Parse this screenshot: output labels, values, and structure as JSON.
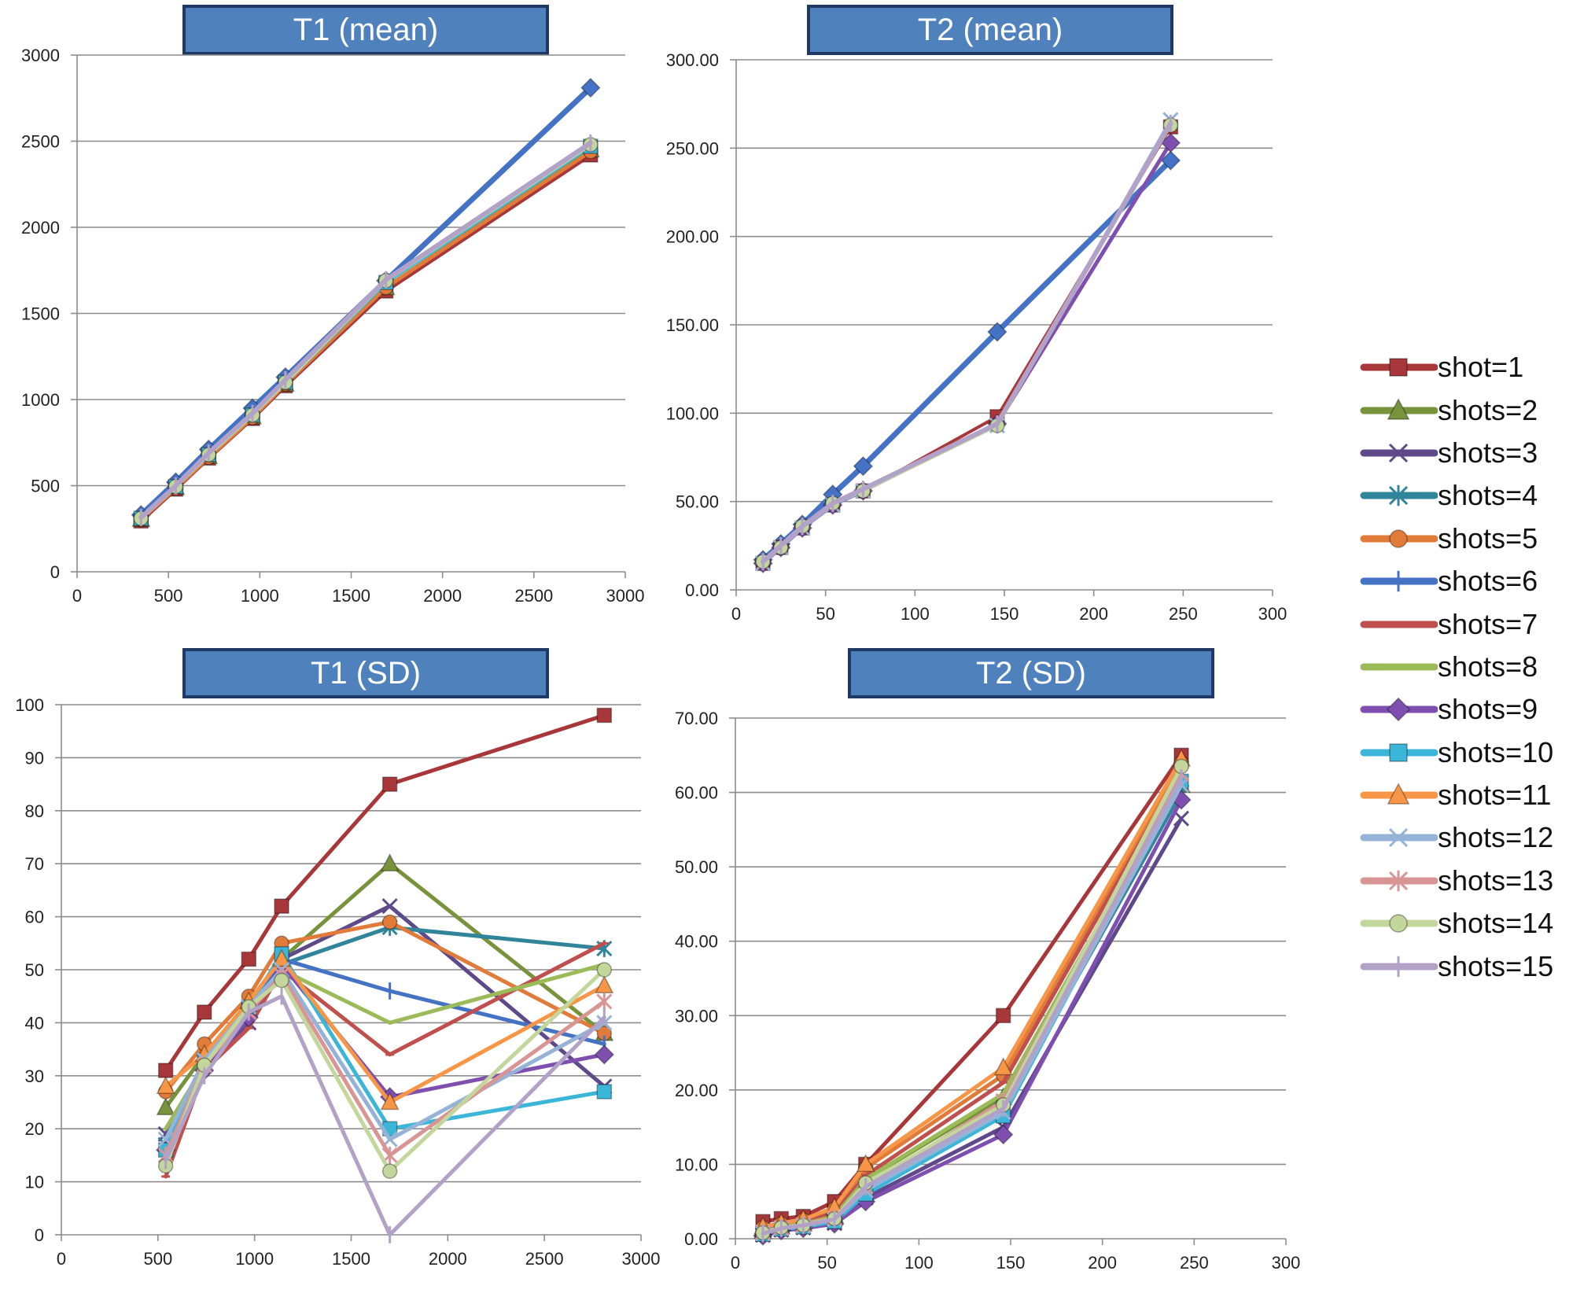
{
  "legend": {
    "items": [
      {
        "label": "shot=1",
        "color": "#a8373a",
        "marker": "square"
      },
      {
        "label": "shots=2",
        "color": "#77933c",
        "marker": "triangle"
      },
      {
        "label": "shots=3",
        "color": "#5e4a8b",
        "marker": "x"
      },
      {
        "label": "shots=4",
        "color": "#31859b",
        "marker": "star"
      },
      {
        "label": "shots=5",
        "color": "#e07b39",
        "marker": "circle"
      },
      {
        "label": "shots=6",
        "color": "#4472c4",
        "marker": "plus"
      },
      {
        "label": "shots=7",
        "color": "#c0504d",
        "marker": "dash"
      },
      {
        "label": "shots=8",
        "color": "#9bbb59",
        "marker": "none"
      },
      {
        "label": "shots=9",
        "color": "#7f4fb0",
        "marker": "diamond"
      },
      {
        "label": "shots=10",
        "color": "#3cb6d8",
        "marker": "square"
      },
      {
        "label": "shots=11",
        "color": "#f79646",
        "marker": "triangle"
      },
      {
        "label": "shots=12",
        "color": "#95b3d7",
        "marker": "x"
      },
      {
        "label": "shots=13",
        "color": "#d99594",
        "marker": "star"
      },
      {
        "label": "shots=14",
        "color": "#c3d69b",
        "marker": "circle"
      },
      {
        "label": "shots=15",
        "color": "#b3a2c7",
        "marker": "plus"
      }
    ]
  },
  "chart_data": [
    {
      "type": "line",
      "title": "T1 (mean)",
      "xlabel": "",
      "ylabel": "",
      "xlim": [
        0,
        3000
      ],
      "ylim": [
        0,
        3000
      ],
      "xticks": [
        "0",
        "500",
        "1000",
        "1500",
        "2000",
        "2500",
        "3000"
      ],
      "yticks": [
        "0",
        "500",
        "1000",
        "1500",
        "2000",
        "2500",
        "3000"
      ],
      "x": [
        350,
        540,
        720,
        960,
        1140,
        1690,
        2810
      ],
      "series": [
        {
          "name": "shots=6",
          "values": [
            330,
            520,
            710,
            950,
            1130,
            1690,
            2810
          ],
          "color": "#4472c4",
          "marker": "diamond",
          "width": 7
        },
        {
          "name": "shot=1",
          "values": [
            295,
            480,
            660,
            890,
            1080,
            1630,
            2420
          ],
          "color": "#a8373a",
          "marker": "square",
          "width": 5
        },
        {
          "name": "shots=2",
          "values": [
            305,
            490,
            670,
            900,
            1090,
            1650,
            2450
          ],
          "color": "#77933c",
          "marker": "triangle",
          "width": 5
        },
        {
          "name": "shots=5",
          "values": [
            305,
            485,
            665,
            895,
            1090,
            1650,
            2440
          ],
          "color": "#e07b39",
          "marker": "circle",
          "width": 5
        },
        {
          "name": "shots=10",
          "values": [
            310,
            495,
            680,
            910,
            1100,
            1680,
            2470
          ],
          "color": "#3cb6d8",
          "marker": "square",
          "width": 5
        },
        {
          "name": "shots=14",
          "values": [
            310,
            495,
            680,
            910,
            1100,
            1690,
            2480
          ],
          "color": "#c3d69b",
          "marker": "circle",
          "width": 5
        },
        {
          "name": "shots=15",
          "values": [
            315,
            500,
            690,
            920,
            1115,
            1695,
            2490
          ],
          "color": "#b3a2c7",
          "marker": "plus",
          "width": 6
        }
      ]
    },
    {
      "type": "line",
      "title": "T2 (mean)",
      "xlabel": "",
      "ylabel": "",
      "xlim": [
        0,
        300
      ],
      "ylim": [
        0,
        300
      ],
      "xticks": [
        "0",
        "50",
        "100",
        "150",
        "200",
        "250",
        "300"
      ],
      "yticks": [
        "0.00",
        "50.00",
        "100.00",
        "150.00",
        "200.00",
        "250.00",
        "300.00"
      ],
      "x": [
        15,
        25,
        37,
        54,
        71,
        146,
        243
      ],
      "series": [
        {
          "name": "shots=6",
          "values": [
            17,
            26,
            37,
            54,
            70,
            146,
            243
          ],
          "color": "#4472c4",
          "marker": "diamond",
          "width": 7
        },
        {
          "name": "shot=1",
          "values": [
            15,
            24,
            35,
            48,
            56,
            98,
            262
          ],
          "color": "#a8373a",
          "marker": "square",
          "width": 4
        },
        {
          "name": "shots=9",
          "values": [
            15,
            24,
            35,
            48,
            56,
            94,
            253
          ],
          "color": "#7f4fb0",
          "marker": "diamond",
          "width": 5
        },
        {
          "name": "shots=12",
          "values": [
            15,
            24,
            35,
            48,
            56,
            93,
            266
          ],
          "color": "#95b3d7",
          "marker": "x",
          "width": 4
        },
        {
          "name": "shots=14",
          "values": [
            16,
            24,
            36,
            49,
            56,
            93,
            263
          ],
          "color": "#c3d69b",
          "marker": "circle",
          "width": 4
        },
        {
          "name": "shots=15",
          "values": [
            16,
            25,
            36,
            49,
            57,
            94,
            264
          ],
          "color": "#b3a2c7",
          "marker": "plus",
          "width": 6
        }
      ]
    },
    {
      "type": "line",
      "title": "T1 (SD)",
      "xlabel": "",
      "ylabel": "",
      "xlim": [
        0,
        3000
      ],
      "ylim": [
        0,
        100
      ],
      "xticks": [
        "0",
        "500",
        "1000",
        "1500",
        "2000",
        "2500",
        "3000"
      ],
      "yticks": [
        "0",
        "10",
        "20",
        "30",
        "40",
        "50",
        "60",
        "70",
        "80",
        "90",
        "100"
      ],
      "x": [
        540,
        740,
        970,
        1140,
        1700,
        2810
      ],
      "series": [
        {
          "name": "shot=1",
          "values": [
            31,
            42,
            52,
            62,
            85,
            98
          ],
          "color": "#a8373a",
          "marker": "square",
          "width": 5
        },
        {
          "name": "shots=2",
          "values": [
            24,
            34,
            44,
            52,
            70,
            38
          ],
          "color": "#77933c",
          "marker": "triangle",
          "width": 5
        },
        {
          "name": "shots=3",
          "values": [
            19,
            32,
            40,
            52,
            62,
            28
          ],
          "color": "#5e4a8b",
          "marker": "x",
          "width": 5
        },
        {
          "name": "shots=4",
          "values": [
            17,
            32,
            42,
            51,
            58,
            54
          ],
          "color": "#31859b",
          "marker": "star",
          "width": 5
        },
        {
          "name": "shots=5",
          "values": [
            27,
            36,
            45,
            55,
            59,
            38
          ],
          "color": "#e07b39",
          "marker": "circle",
          "width": 5
        },
        {
          "name": "shots=6",
          "values": [
            16,
            32,
            42,
            52,
            46,
            36
          ],
          "color": "#4472c4",
          "marker": "plus",
          "width": 5
        },
        {
          "name": "shots=7",
          "values": [
            11,
            31,
            39,
            50,
            34,
            55
          ],
          "color": "#c0504d",
          "marker": "dash",
          "width": 5
        },
        {
          "name": "shots=8",
          "values": [
            20,
            32,
            42,
            50,
            40,
            51
          ],
          "color": "#9bbb59",
          "marker": "none",
          "width": 5
        },
        {
          "name": "shots=9",
          "values": [
            16,
            31,
            41,
            51,
            26,
            34
          ],
          "color": "#7f4fb0",
          "marker": "diamond",
          "width": 5
        },
        {
          "name": "shots=10",
          "values": [
            16,
            33,
            43,
            53,
            20,
            27
          ],
          "color": "#3cb6d8",
          "marker": "square",
          "width": 5
        },
        {
          "name": "shots=11",
          "values": [
            28,
            34,
            44,
            52,
            25,
            47
          ],
          "color": "#f79646",
          "marker": "triangle",
          "width": 5
        },
        {
          "name": "shots=12",
          "values": [
            18,
            33,
            43,
            50,
            18,
            40
          ],
          "color": "#95b3d7",
          "marker": "x",
          "width": 5
        },
        {
          "name": "shots=13",
          "values": [
            15,
            32,
            42,
            49,
            15,
            44
          ],
          "color": "#d99594",
          "marker": "star",
          "width": 5
        },
        {
          "name": "shots=14",
          "values": [
            13,
            32,
            43,
            48,
            12,
            50
          ],
          "color": "#c3d69b",
          "marker": "circle",
          "width": 5
        },
        {
          "name": "shots=15",
          "values": [
            14,
            30,
            42,
            45,
            0,
            41
          ],
          "color": "#b3a2c7",
          "marker": "plus",
          "width": 5
        }
      ]
    },
    {
      "type": "line",
      "title": "T2 (SD)",
      "xlabel": "",
      "ylabel": "",
      "xlim": [
        0,
        300
      ],
      "ylim": [
        0,
        70
      ],
      "xticks": [
        "0",
        "50",
        "100",
        "150",
        "200",
        "250",
        "300"
      ],
      "yticks": [
        "0.00",
        "10.00",
        "20.00",
        "30.00",
        "40.00",
        "50.00",
        "60.00",
        "70.00"
      ],
      "x": [
        15,
        25,
        37,
        54,
        71,
        146,
        243
      ],
      "series": [
        {
          "name": "shot=1",
          "values": [
            2.3,
            2.7,
            3.0,
            5.0,
            10.0,
            30.0,
            65.0
          ],
          "color": "#a8373a",
          "marker": "square",
          "width": 5
        },
        {
          "name": "shots=2",
          "values": [
            1.0,
            1.6,
            2.0,
            3.2,
            8.0,
            19.0,
            61.0
          ],
          "color": "#77933c",
          "marker": "triangle",
          "width": 5
        },
        {
          "name": "shots=3",
          "values": [
            0.5,
            1.2,
            1.5,
            2.1,
            5.5,
            15.0,
            56.5
          ],
          "color": "#5e4a8b",
          "marker": "x",
          "width": 5
        },
        {
          "name": "shots=4",
          "values": [
            0.7,
            1.4,
            1.7,
            2.5,
            6.5,
            17.5,
            60.0
          ],
          "color": "#31859b",
          "marker": "star",
          "width": 5
        },
        {
          "name": "shots=5",
          "values": [
            1.5,
            2.0,
            2.5,
            4.0,
            9.5,
            22.0,
            64.0
          ],
          "color": "#e07b39",
          "marker": "circle",
          "width": 5
        },
        {
          "name": "shots=6",
          "values": [
            0.8,
            1.5,
            1.8,
            2.6,
            7.0,
            18.0,
            62.0
          ],
          "color": "#4472c4",
          "marker": "plus",
          "width": 5
        },
        {
          "name": "shots=7",
          "values": [
            1.2,
            1.8,
            2.2,
            3.5,
            8.5,
            21.0,
            63.0
          ],
          "color": "#c0504d",
          "marker": "dash",
          "width": 5
        },
        {
          "name": "shots=8",
          "values": [
            0.9,
            1.6,
            2.0,
            3.0,
            8.0,
            19.5,
            62.0
          ],
          "color": "#9bbb59",
          "marker": "none",
          "width": 5
        },
        {
          "name": "shots=9",
          "values": [
            0.4,
            1.1,
            1.4,
            2.0,
            5.0,
            14.0,
            59.0
          ],
          "color": "#7f4fb0",
          "marker": "diamond",
          "width": 5
        },
        {
          "name": "shots=10",
          "values": [
            0.6,
            1.3,
            1.6,
            2.3,
            6.0,
            16.5,
            61.5
          ],
          "color": "#3cb6d8",
          "marker": "square",
          "width": 5
        },
        {
          "name": "shots=11",
          "values": [
            1.6,
            2.1,
            2.6,
            4.2,
            10.0,
            23.0,
            64.5
          ],
          "color": "#f79646",
          "marker": "triangle",
          "width": 5
        },
        {
          "name": "shots=12",
          "values": [
            0.7,
            1.4,
            1.7,
            2.6,
            6.5,
            17.0,
            61.0
          ],
          "color": "#95b3d7",
          "marker": "x",
          "width": 5
        },
        {
          "name": "shots=13",
          "values": [
            0.9,
            1.5,
            1.9,
            2.8,
            7.0,
            18.5,
            62.5
          ],
          "color": "#d99594",
          "marker": "star",
          "width": 5
        },
        {
          "name": "shots=14",
          "values": [
            0.8,
            1.5,
            1.8,
            2.7,
            7.5,
            18.0,
            63.5
          ],
          "color": "#c3d69b",
          "marker": "circle",
          "width": 5
        },
        {
          "name": "shots=15",
          "values": [
            0.7,
            1.4,
            1.8,
            2.6,
            7.0,
            17.5,
            62.0
          ],
          "color": "#b3a2c7",
          "marker": "plus",
          "width": 5
        }
      ]
    }
  ]
}
